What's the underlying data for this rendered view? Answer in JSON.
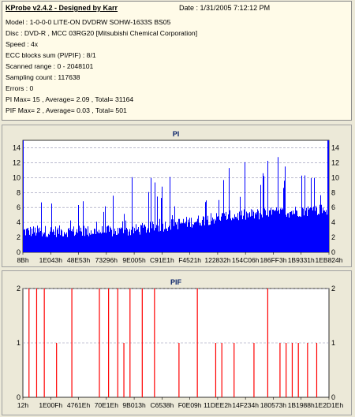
{
  "info": {
    "title": "KProbe v2.4.2 - Designed by Karr",
    "date": "Date : 1/31/2005 7:12:12 PM",
    "lines": [
      "Model : 1-0-0-0 LITE-ON DVDRW SOHW-1633S BS05",
      "Disc : DVD-R , MCC 03RG20  [Mitsubishi Chemical Corporation]",
      "Speed : 4x",
      "ECC blocks sum (PI/PIF) : 8/1",
      "Scanned range : 0 - 2048101",
      "Sampling count : 117638",
      "Errors : 0",
      "PI Max= 15 , Average= 2.09 , Total= 31164",
      "PIF Max= 2 , Average= 0.03 , Total= 501"
    ]
  },
  "colors": {
    "pi_bar": "#0000ff",
    "pif_bar": "#ff0000",
    "grid": "#9090b0",
    "plot_bg": "#ffffff",
    "panel_bg": "#ece9d8"
  },
  "chart_data": [
    {
      "type": "bar",
      "title": "PI",
      "ylim": [
        0,
        15
      ],
      "yticks": [
        "0",
        "2",
        "4",
        "6",
        "8",
        "10",
        "12",
        "14"
      ],
      "xticks": [
        "8Bh",
        "1E043h",
        "48E53h",
        "73296h",
        "9E005h",
        "C91E1h",
        "F4521h",
        "122832h",
        "154C06h",
        "186FF3h",
        "1B9331h",
        "1EB824h"
      ],
      "grid": "dashed horizontal",
      "x_position_fraction": [
        0.0,
        0.5,
        1.0
      ],
      "envelope": {
        "base": [
          2,
          2,
          4,
          5
        ],
        "peaks": [
          9,
          10,
          12,
          14
        ]
      }
    },
    {
      "type": "bar",
      "title": "PIF",
      "ylim": [
        0,
        2
      ],
      "yticks": [
        "0",
        "1",
        "2"
      ],
      "xticks": [
        "12h",
        "1E00Fh",
        "4761Eh",
        "70E1Eh",
        "9B013h",
        "C6538h",
        "F0E09h",
        "11DEE2h",
        "14F234h",
        "180573h",
        "1B1988h",
        "1E2D1Eh"
      ],
      "grid": "dashed horizontal",
      "spikes": [
        {
          "x": 0.02,
          "value": 2
        },
        {
          "x": 0.045,
          "value": 2
        },
        {
          "x": 0.07,
          "value": 2
        },
        {
          "x": 0.11,
          "value": 1
        },
        {
          "x": 0.16,
          "value": 2
        },
        {
          "x": 0.25,
          "value": 2
        },
        {
          "x": 0.28,
          "value": 2
        },
        {
          "x": 0.31,
          "value": 2
        },
        {
          "x": 0.33,
          "value": 1
        },
        {
          "x": 0.35,
          "value": 2
        },
        {
          "x": 0.39,
          "value": 2
        },
        {
          "x": 0.43,
          "value": 2
        },
        {
          "x": 0.51,
          "value": 1
        },
        {
          "x": 0.57,
          "value": 2
        },
        {
          "x": 0.63,
          "value": 1
        },
        {
          "x": 0.65,
          "value": 1
        },
        {
          "x": 0.69,
          "value": 1
        },
        {
          "x": 0.755,
          "value": 1
        },
        {
          "x": 0.8,
          "value": 2
        },
        {
          "x": 0.84,
          "value": 1
        },
        {
          "x": 0.86,
          "value": 1
        },
        {
          "x": 0.88,
          "value": 1
        },
        {
          "x": 0.9,
          "value": 1
        },
        {
          "x": 0.93,
          "value": 1
        },
        {
          "x": 0.96,
          "value": 1
        }
      ]
    }
  ]
}
